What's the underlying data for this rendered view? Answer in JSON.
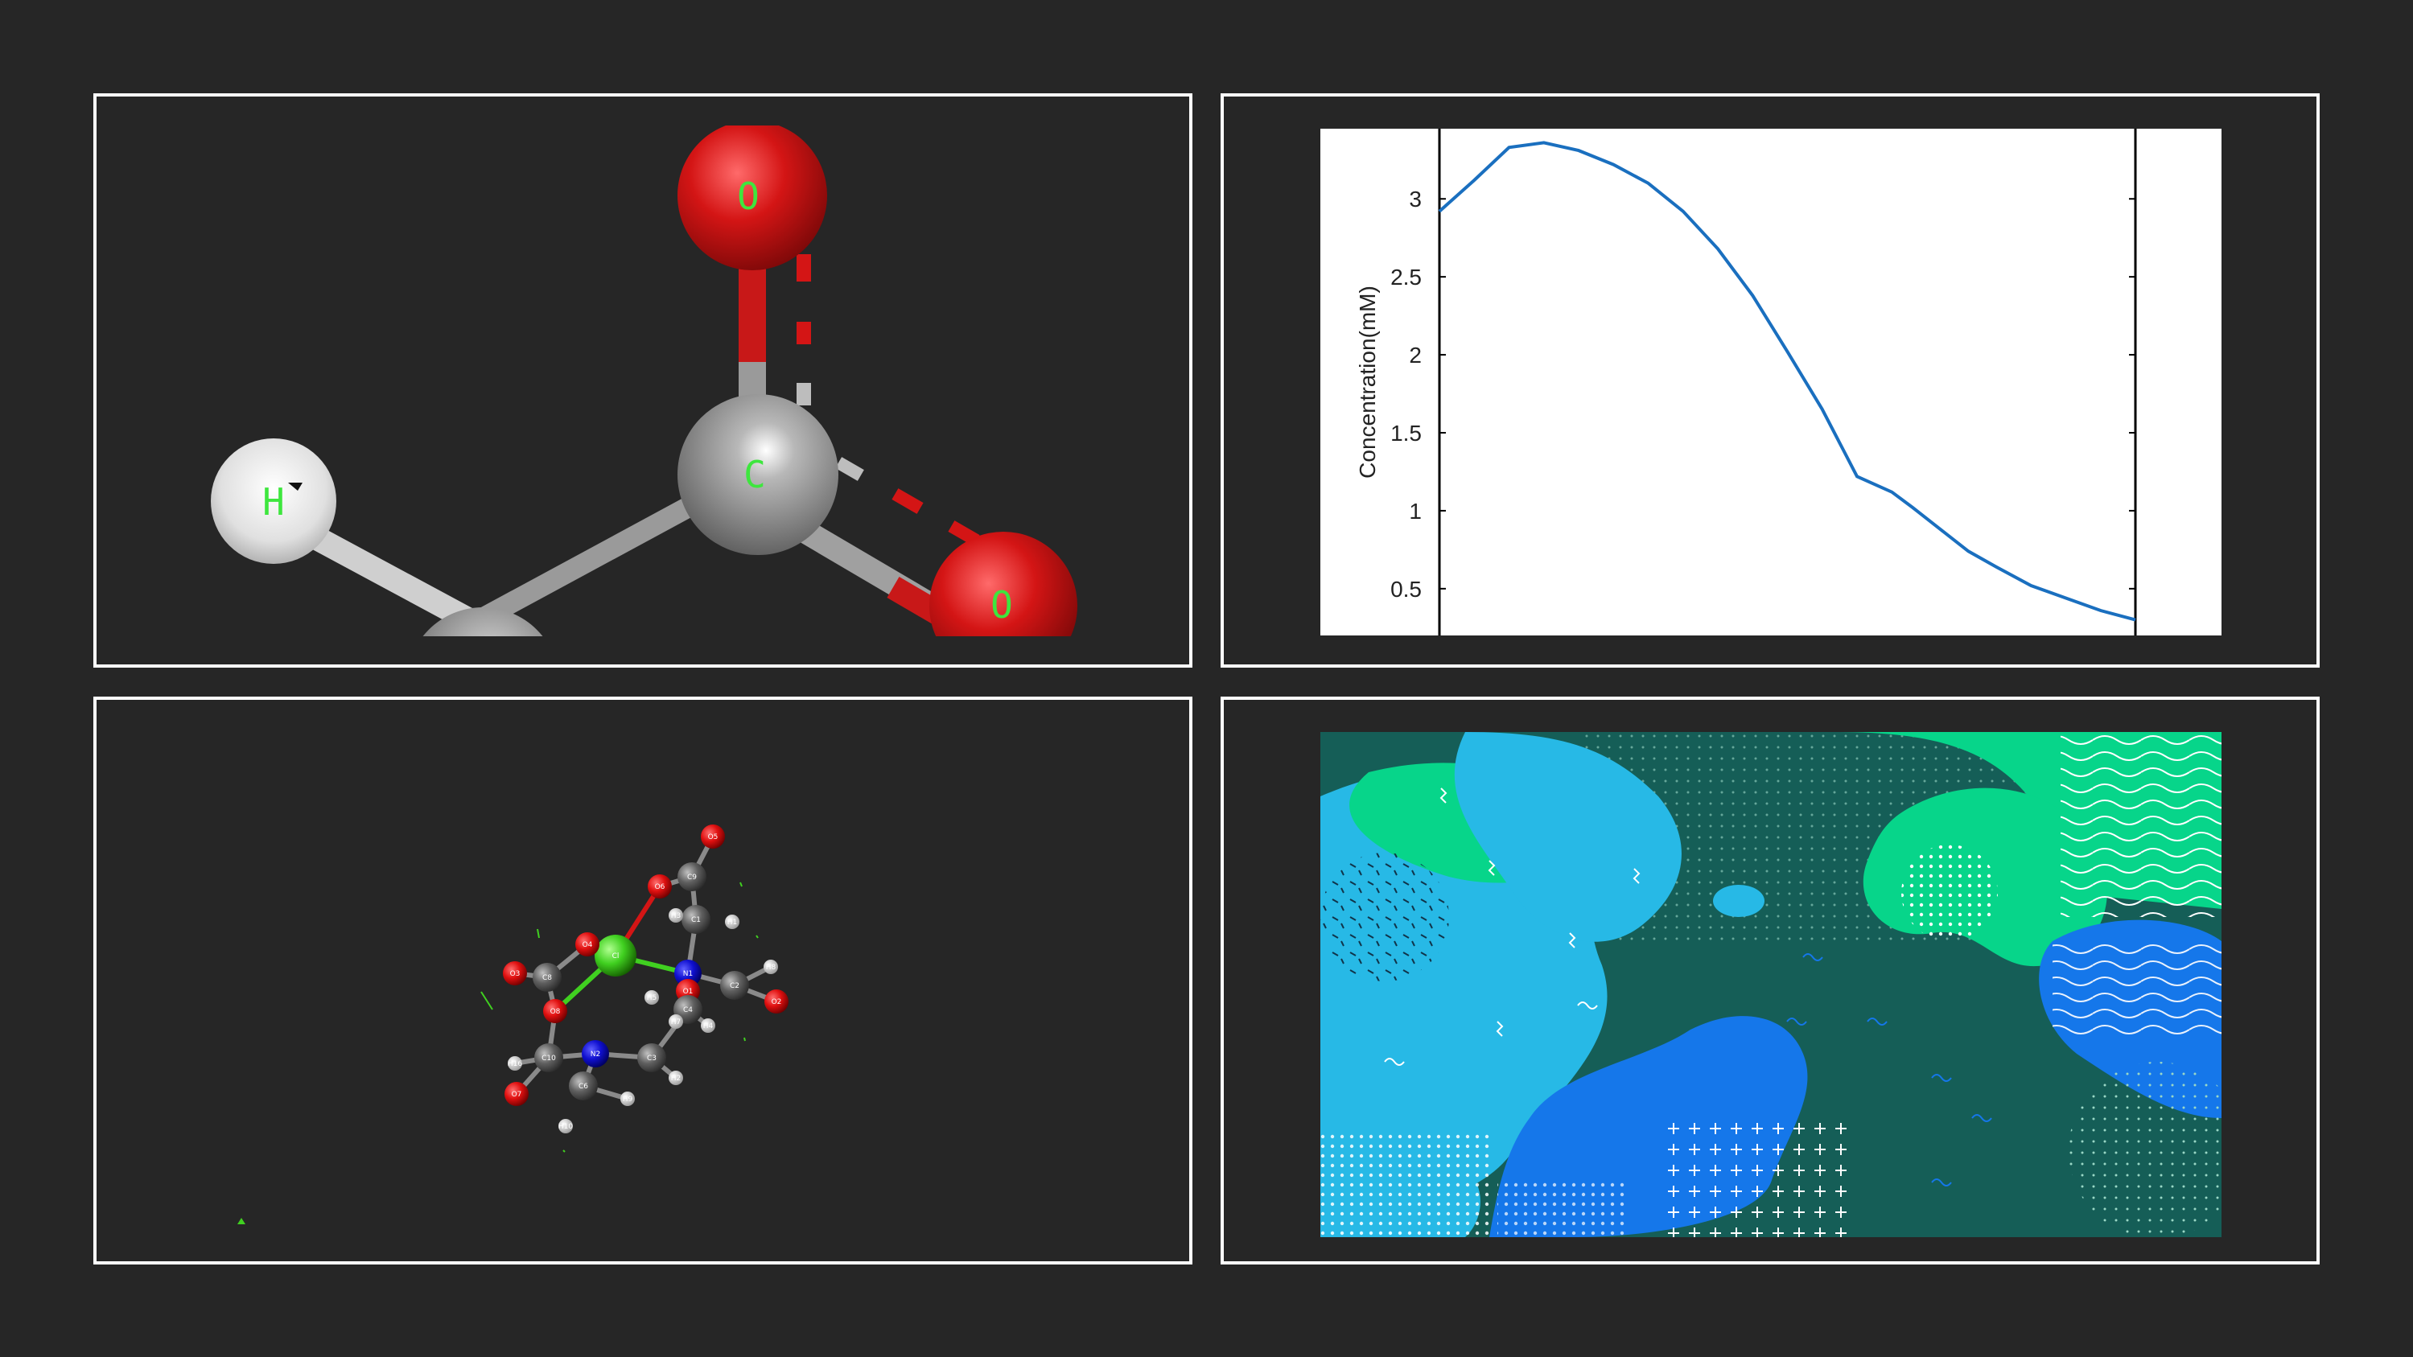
{
  "colors": {
    "background": "#262626",
    "panel_border": "#ffffff",
    "oxygen": "#d41515",
    "carbon": "#8c8c8c",
    "hydrogen": "#e8e8e8",
    "nitrogen": "#1010d0",
    "chlorine": "#40d020",
    "atom_label": "#3ee63e",
    "line_series": "#1a6fbf"
  },
  "top_left_molecule": {
    "atoms": [
      {
        "id": "O-top",
        "label": "O",
        "element": "oxygen"
      },
      {
        "id": "C-center",
        "label": "C",
        "element": "carbon"
      },
      {
        "id": "H-left",
        "label": "H",
        "element": "hydrogen"
      },
      {
        "id": "O-right",
        "label": "O",
        "element": "oxygen"
      }
    ]
  },
  "bottom_left_molecule": {
    "atom_labels": [
      "O5",
      "C9",
      "O6",
      "H3",
      "C1",
      "H1",
      "O4",
      "C8",
      "Cl",
      "N1",
      "H8",
      "C2",
      "O2",
      "O3",
      "H5",
      "O1",
      "C4",
      "H4",
      "O8",
      "N2",
      "H2",
      "C3",
      "H16",
      "C10",
      "H7",
      "O7",
      "C6",
      "H9",
      "H10",
      "C5"
    ]
  },
  "chart_data": {
    "type": "line",
    "title": "",
    "xlabel": "",
    "ylabel": "Concentration(mM)",
    "yticks": [
      "0.5",
      "1",
      "1.5",
      "2",
      "2.5",
      "3"
    ],
    "ylim": [
      0.2,
      3.45
    ],
    "xlim": [
      0,
      1
    ],
    "grid": false,
    "series": [
      {
        "x": [
          0.0,
          0.05,
          0.1,
          0.15,
          0.2,
          0.25,
          0.3,
          0.35,
          0.4,
          0.45,
          0.5,
          0.55,
          0.6,
          0.65,
          0.68,
          0.72,
          0.76,
          0.8,
          0.85,
          0.9,
          0.95,
          1.0
        ],
        "y": [
          2.92,
          3.12,
          3.33,
          3.36,
          3.31,
          3.22,
          3.1,
          2.92,
          2.68,
          2.38,
          2.02,
          1.65,
          1.22,
          1.12,
          1.02,
          0.88,
          0.74,
          0.64,
          0.52,
          0.44,
          0.36,
          0.3
        ]
      }
    ]
  },
  "bottom_right_art": {
    "description_tag": "abstract-pattern"
  }
}
